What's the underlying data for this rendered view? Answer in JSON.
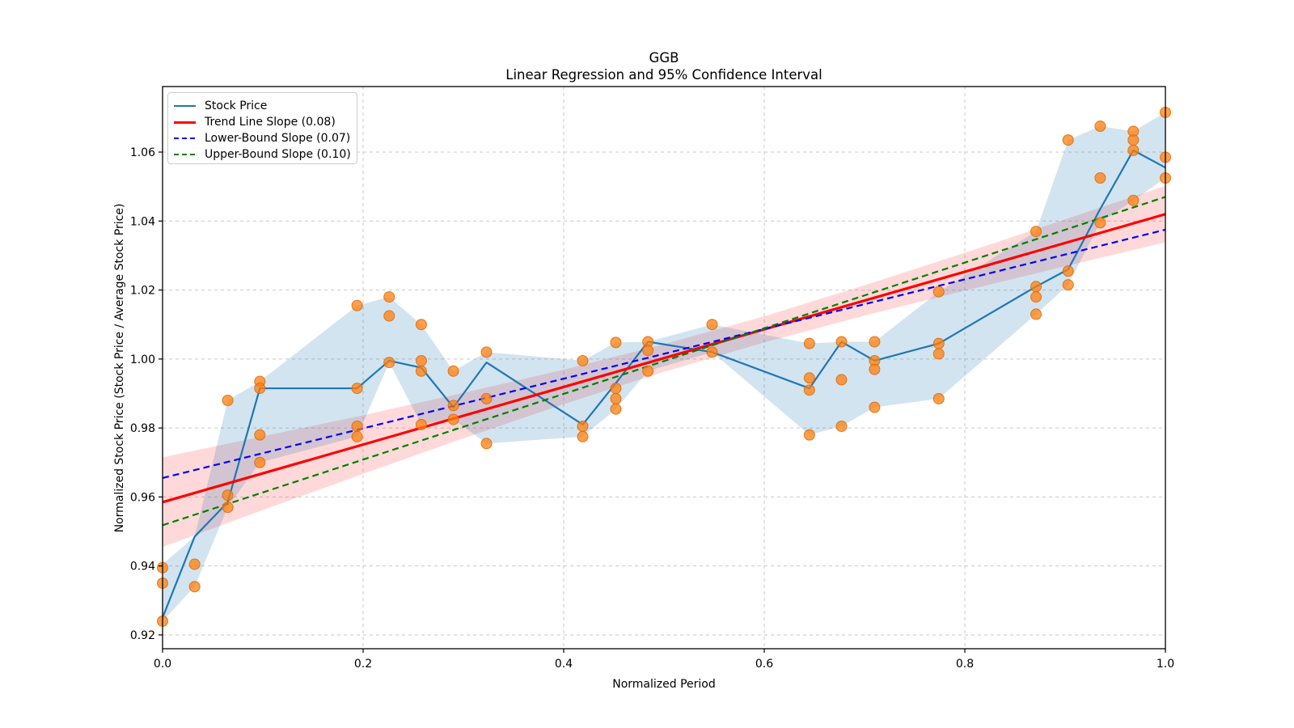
{
  "title": {
    "line1": "GGB",
    "line2": "Linear Regression and 95% Confidence Interval"
  },
  "legend": {
    "items": [
      {
        "label": "Stock Price",
        "color": "#1f77b4",
        "style": "solid",
        "thickness": 2
      },
      {
        "label": "Trend Line Slope (0.08)",
        "color": "#ff0000",
        "style": "solid",
        "thickness": 3
      },
      {
        "label": "Lower-Bound Slope (0.07)",
        "color": "#0000ff",
        "style": "dashed",
        "thickness": 2
      },
      {
        "label": "Upper-Bound Slope (0.10)",
        "color": "#008000",
        "style": "dashed",
        "thickness": 2
      }
    ]
  },
  "colors": {
    "stock_line": "#1f77b4",
    "scatter": "#ff7f0e",
    "trend_line": "#ff0000",
    "lower_bound": "#0000ff",
    "upper_bound": "#008000",
    "stock_band_fill": "rgba(31,119,180,0.20)",
    "trend_band_fill": "rgba(255,0,0,0.15)",
    "grid": "#c9c9c9",
    "frame": "#000000"
  },
  "chart_data": {
    "type": "line",
    "title": "GGB",
    "subtitle": "Linear Regression and 95% Confidence Interval",
    "xlabel": "Normalized Period",
    "ylabel": "Normalized Stock Price (Stock Price / Average Stock Price)",
    "xlim": [
      0,
      1
    ],
    "ylim": [
      0.916,
      1.079
    ],
    "x_ticks": [
      0.0,
      0.2,
      0.4,
      0.6,
      0.8,
      1.0
    ],
    "x_tick_labels": [
      "0.0",
      "0.2",
      "0.4",
      "0.6",
      "0.8",
      "1.0"
    ],
    "y_ticks": [
      0.92,
      0.94,
      0.96,
      0.98,
      1.0,
      1.02,
      1.04,
      1.06
    ],
    "y_tick_labels": [
      "0.92",
      "0.94",
      "0.96",
      "0.98",
      "1.00",
      "1.02",
      "1.04",
      "1.06"
    ],
    "grid": true,
    "legend_position": "upper-left",
    "series": {
      "stock_price": {
        "name": "Stock Price",
        "x": [
          0.0,
          0.032,
          0.065,
          0.097,
          0.194,
          0.226,
          0.258,
          0.29,
          0.323,
          0.419,
          0.452,
          0.484,
          0.548,
          0.645,
          0.677,
          0.71,
          0.774,
          0.871,
          0.903,
          0.935,
          0.968,
          1.0
        ],
        "y": [
          0.925,
          0.9485,
          0.9585,
          0.9915,
          0.9915,
          0.9995,
          0.9975,
          0.986,
          0.999,
          0.981,
          0.993,
          1.005,
          1.002,
          0.9915,
          1.005,
          0.9995,
          1.0045,
          1.021,
          1.026,
          1.0435,
          1.0605,
          1.0555
        ]
      },
      "stock_band": {
        "name": "Stock Price min-max band",
        "x": [
          0.0,
          0.032,
          0.065,
          0.097,
          0.194,
          0.226,
          0.258,
          0.29,
          0.323,
          0.419,
          0.452,
          0.484,
          0.548,
          0.645,
          0.677,
          0.71,
          0.774,
          0.871,
          0.903,
          0.935,
          0.968,
          1.0
        ],
        "upper": [
          0.9405,
          0.9485,
          0.988,
          0.9935,
          1.0155,
          1.018,
          1.01,
          0.9965,
          1.002,
          0.9995,
          1.0048,
          1.005,
          1.01,
          1.0045,
          1.005,
          1.005,
          1.0195,
          1.037,
          1.0635,
          1.0675,
          1.066,
          1.0715
        ],
        "lower": [
          0.924,
          0.934,
          0.957,
          0.97,
          0.9775,
          0.999,
          0.981,
          0.9825,
          0.9755,
          0.9775,
          0.9855,
          0.9965,
          1.002,
          0.978,
          0.9805,
          0.986,
          0.9885,
          1.013,
          1.0215,
          1.0395,
          1.046,
          1.0525
        ]
      },
      "scatter": {
        "name": "Normalized stock prices",
        "points": [
          [
            0.0,
            0.9395
          ],
          [
            0.0,
            0.935
          ],
          [
            0.0,
            0.924
          ],
          [
            0.032,
            0.9405
          ],
          [
            0.032,
            0.934
          ],
          [
            0.065,
            0.988
          ],
          [
            0.065,
            0.9605
          ],
          [
            0.065,
            0.957
          ],
          [
            0.097,
            0.9935
          ],
          [
            0.097,
            0.9915
          ],
          [
            0.097,
            0.978
          ],
          [
            0.097,
            0.97
          ],
          [
            0.194,
            1.0155
          ],
          [
            0.194,
            0.9915
          ],
          [
            0.194,
            0.9805
          ],
          [
            0.194,
            0.9775
          ],
          [
            0.226,
            1.018
          ],
          [
            0.226,
            1.0125
          ],
          [
            0.226,
            0.999
          ],
          [
            0.258,
            1.01
          ],
          [
            0.258,
            0.9995
          ],
          [
            0.258,
            0.9965
          ],
          [
            0.258,
            0.981
          ],
          [
            0.29,
            0.9965
          ],
          [
            0.29,
            0.9865
          ],
          [
            0.29,
            0.9825
          ],
          [
            0.323,
            1.002
          ],
          [
            0.323,
            0.9885
          ],
          [
            0.323,
            0.9755
          ],
          [
            0.419,
            0.9995
          ],
          [
            0.419,
            0.9805
          ],
          [
            0.419,
            0.9775
          ],
          [
            0.452,
            1.0048
          ],
          [
            0.452,
            0.9915
          ],
          [
            0.452,
            0.9885
          ],
          [
            0.452,
            0.9855
          ],
          [
            0.484,
            1.005
          ],
          [
            0.484,
            1.0025
          ],
          [
            0.484,
            0.9965
          ],
          [
            0.548,
            1.01
          ],
          [
            0.548,
            1.002
          ],
          [
            0.645,
            1.0045
          ],
          [
            0.645,
            0.9945
          ],
          [
            0.645,
            0.991
          ],
          [
            0.645,
            0.978
          ],
          [
            0.677,
            1.005
          ],
          [
            0.677,
            0.994
          ],
          [
            0.677,
            0.9805
          ],
          [
            0.71,
            1.005
          ],
          [
            0.71,
            0.9995
          ],
          [
            0.71,
            0.997
          ],
          [
            0.71,
            0.986
          ],
          [
            0.774,
            1.0195
          ],
          [
            0.774,
            1.0045
          ],
          [
            0.774,
            1.0015
          ],
          [
            0.774,
            0.9885
          ],
          [
            0.871,
            1.037
          ],
          [
            0.871,
            1.021
          ],
          [
            0.871,
            1.018
          ],
          [
            0.871,
            1.013
          ],
          [
            0.903,
            1.0635
          ],
          [
            0.903,
            1.0255
          ],
          [
            0.903,
            1.0215
          ],
          [
            0.935,
            1.0675
          ],
          [
            0.935,
            1.0525
          ],
          [
            0.935,
            1.0395
          ],
          [
            0.968,
            1.066
          ],
          [
            0.968,
            1.0635
          ],
          [
            0.968,
            1.0605
          ],
          [
            0.968,
            1.046
          ],
          [
            1.0,
            1.0715
          ],
          [
            1.0,
            1.0585
          ],
          [
            1.0,
            1.0525
          ]
        ]
      },
      "trend": {
        "name": "Trend Line Slope (0.08)",
        "slope_label": "0.08",
        "x": [
          0,
          1
        ],
        "y": [
          0.9585,
          1.042
        ]
      },
      "lower_bound": {
        "name": "Lower-Bound Slope (0.07)",
        "slope_label": "0.07",
        "x": [
          0,
          1
        ],
        "y": [
          0.9655,
          1.0375
        ]
      },
      "upper_bound": {
        "name": "Upper-Bound Slope (0.10)",
        "slope_label": "0.10",
        "x": [
          0,
          1
        ],
        "y": [
          0.9518,
          1.047
        ]
      },
      "trend_band": {
        "name": "Trend 95% confidence band",
        "x": [
          0.0,
          0.1,
          0.2,
          0.3,
          0.4,
          0.5,
          0.6,
          0.7,
          0.8,
          0.9,
          1.0
        ],
        "upper": [
          0.9715,
          0.9776,
          0.9837,
          0.9902,
          0.9969,
          1.0043,
          1.0124,
          1.0214,
          1.0308,
          1.0405,
          1.0502
        ],
        "lower": [
          0.9455,
          0.9562,
          0.9667,
          0.977,
          0.9869,
          0.9963,
          1.0048,
          1.0126,
          1.0198,
          1.0269,
          1.0338
        ]
      }
    }
  }
}
